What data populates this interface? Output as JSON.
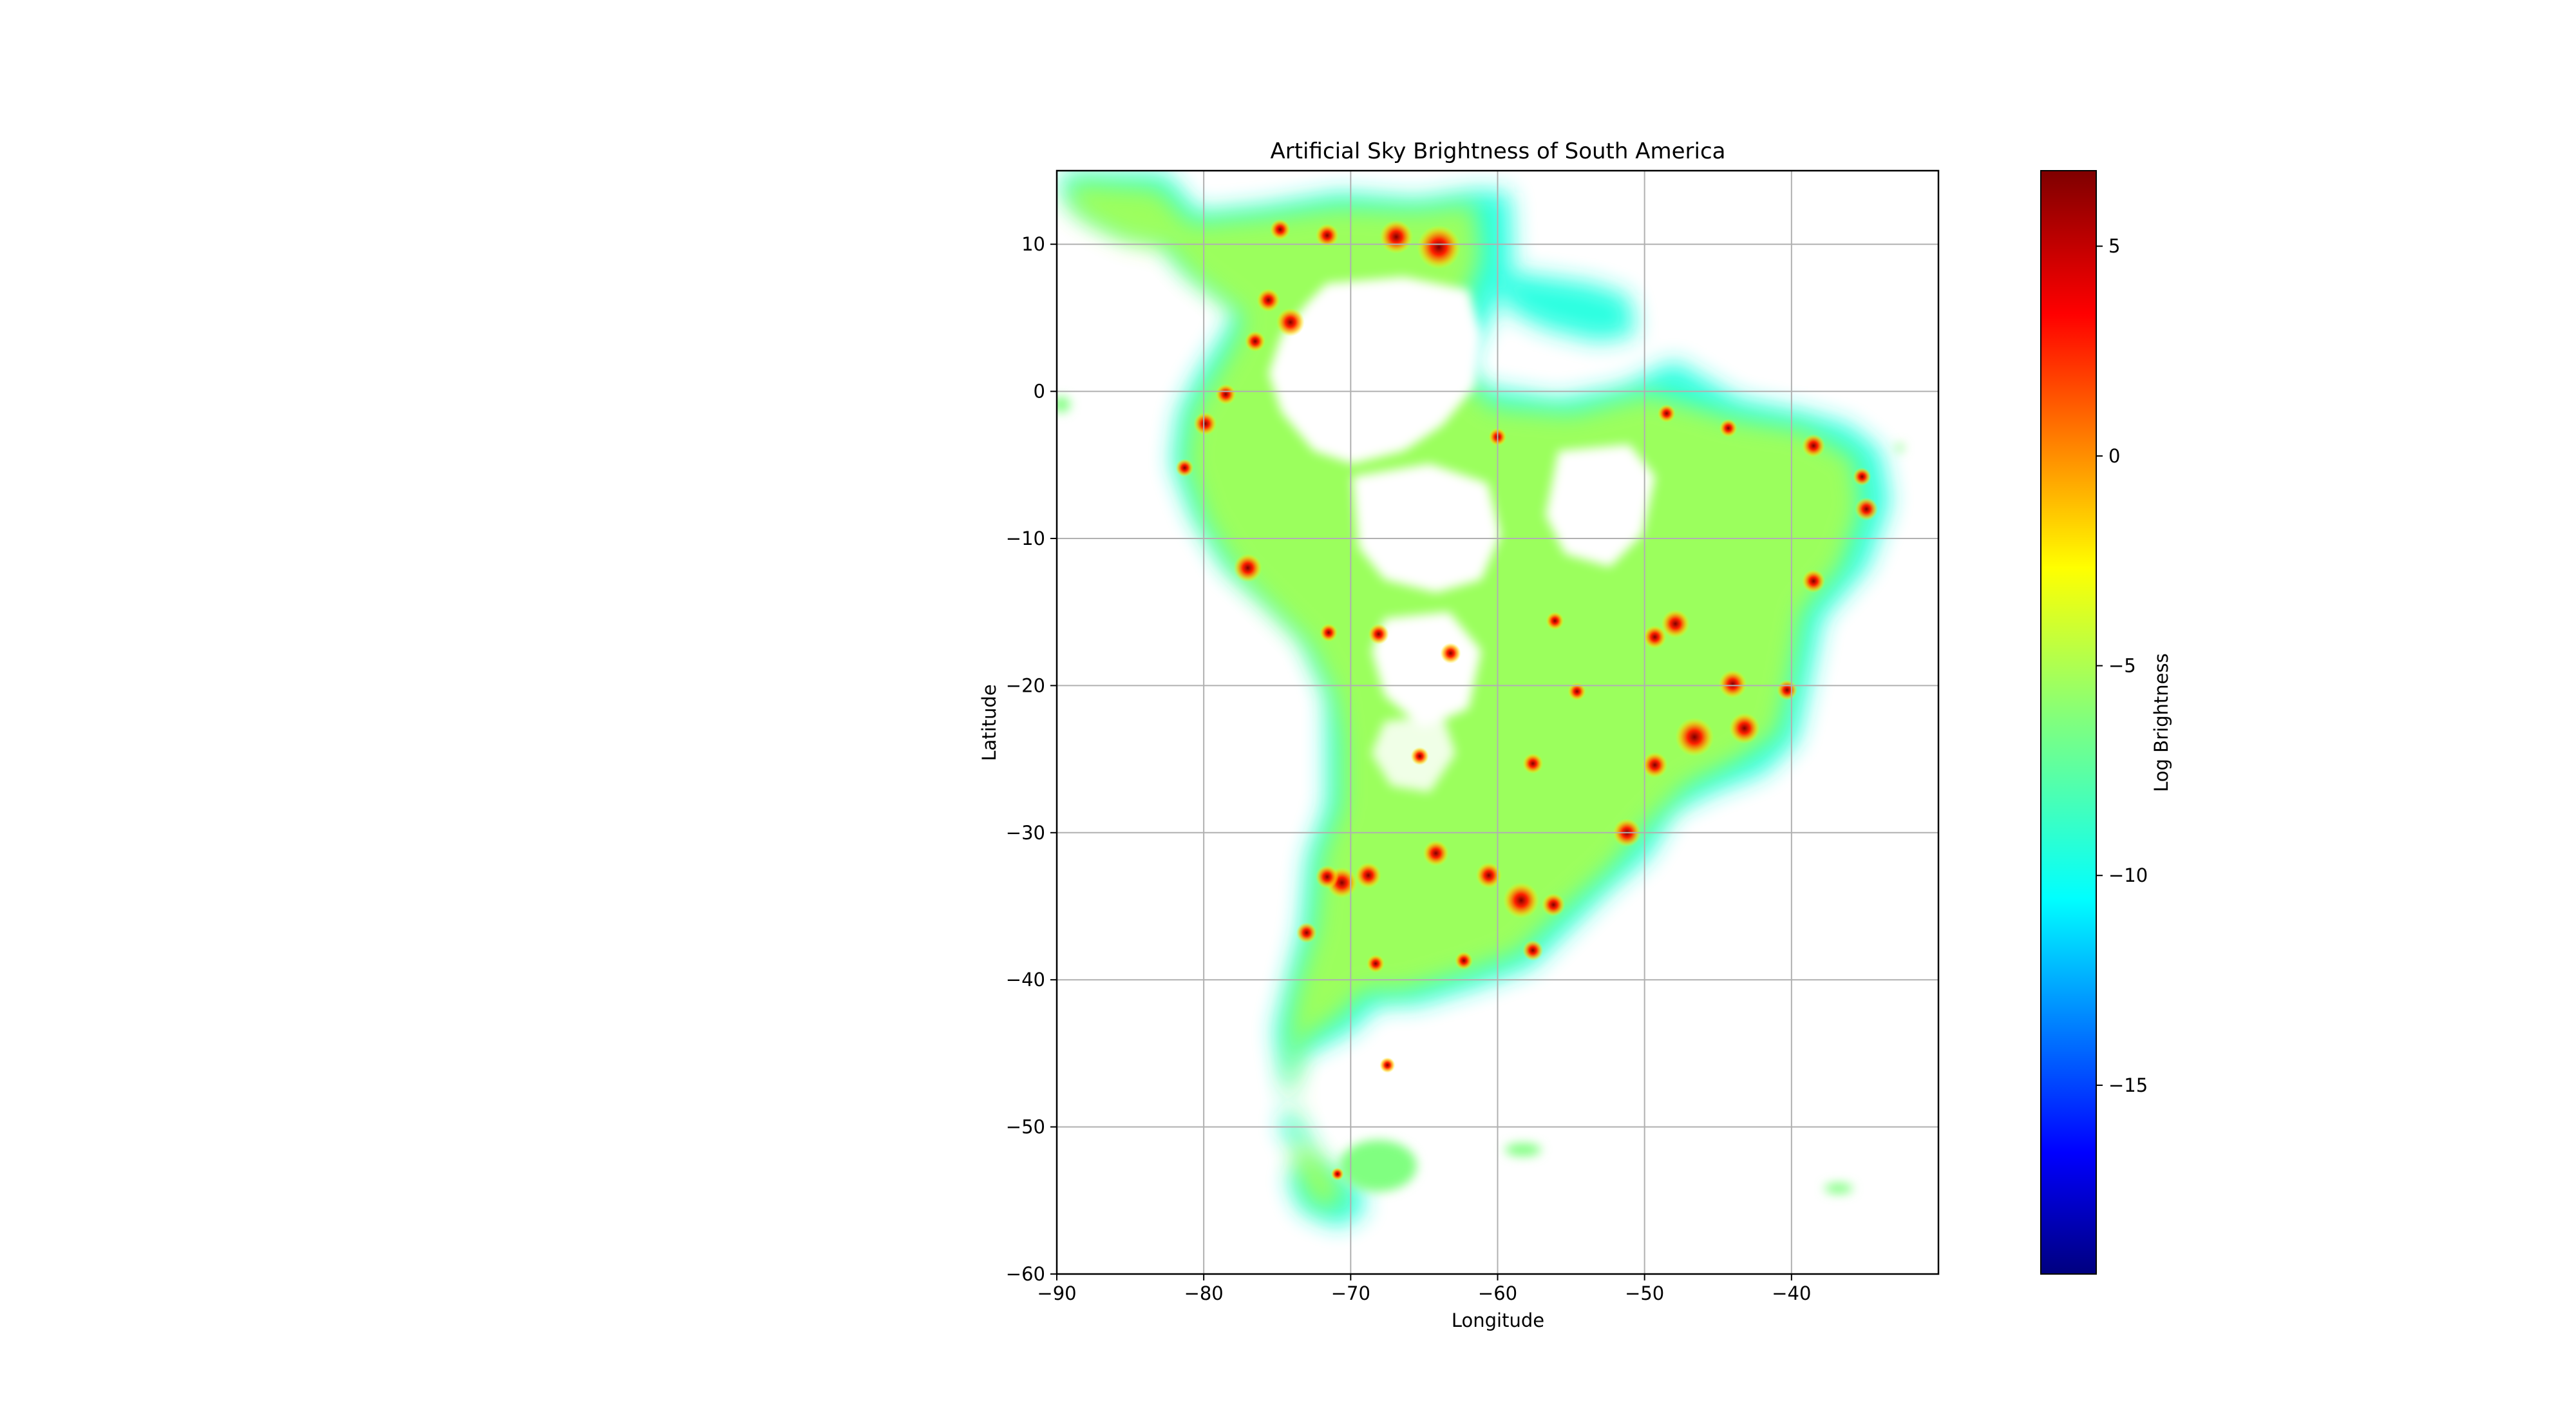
{
  "chart_data": {
    "type": "heatmap",
    "title": "Artificial Sky Brightness of South America",
    "xlabel": "Longitude",
    "ylabel": "Latitude",
    "xlim": [
      -90,
      -30
    ],
    "ylim": [
      -60,
      15
    ],
    "xticks": [
      -90,
      -80,
      -70,
      -60,
      -50,
      -40
    ],
    "xtick_labels": [
      "−90",
      "−80",
      "−70",
      "−60",
      "−50",
      "−40"
    ],
    "yticks": [
      10,
      0,
      -10,
      -20,
      -30,
      -40,
      -50,
      -60
    ],
    "ytick_labels": [
      "10",
      "0",
      "−10",
      "−20",
      "−30",
      "−40",
      "−50",
      "−60"
    ],
    "grid": true,
    "colormap": "jet",
    "colorbar": {
      "label": "Log Brightness",
      "range": [
        -19.5,
        6.8
      ],
      "ticks": [
        5,
        0,
        -5,
        -10,
        -15
      ],
      "tick_labels": [
        "5",
        "0",
        "−5",
        "−10",
        "−15"
      ]
    },
    "bright_spots": [
      {
        "lon": -46.6,
        "lat": -23.5,
        "value": 5.5
      },
      {
        "lon": -58.4,
        "lat": -34.6,
        "value": 5.0
      },
      {
        "lon": -43.2,
        "lat": -22.9,
        "value": 4.0
      },
      {
        "lon": -70.6,
        "lat": -33.4,
        "value": 4.0
      },
      {
        "lon": -66.9,
        "lat": 10.5,
        "value": 4.5
      },
      {
        "lon": -64.0,
        "lat": 9.8,
        "value": 6.5
      },
      {
        "lon": -47.9,
        "lat": -15.8,
        "value": 3.5
      },
      {
        "lon": -44.0,
        "lat": -19.9,
        "value": 3.5
      },
      {
        "lon": -74.1,
        "lat": 4.7,
        "value": 3.5
      },
      {
        "lon": -77.0,
        "lat": -12.0,
        "value": 3.5
      },
      {
        "lon": -51.2,
        "lat": -30.0,
        "value": 3.5
      },
      {
        "lon": -49.3,
        "lat": -25.4,
        "value": 3.0
      },
      {
        "lon": -38.5,
        "lat": -12.9,
        "value": 2.5
      },
      {
        "lon": -64.2,
        "lat": -31.4,
        "value": 3.0
      },
      {
        "lon": -60.6,
        "lat": -32.9,
        "value": 3.0
      },
      {
        "lon": -68.8,
        "lat": -32.9,
        "value": 3.0
      },
      {
        "lon": -57.6,
        "lat": -38.0,
        "value": 2.0
      },
      {
        "lon": -56.2,
        "lat": -34.9,
        "value": 2.5
      },
      {
        "lon": -38.5,
        "lat": -3.7,
        "value": 2.5
      },
      {
        "lon": -34.9,
        "lat": -8.0,
        "value": 2.5
      },
      {
        "lon": -78.5,
        "lat": -0.2,
        "value": 2.0
      },
      {
        "lon": -79.9,
        "lat": -2.2,
        "value": 2.5
      },
      {
        "lon": -75.6,
        "lat": 6.2,
        "value": 2.5
      },
      {
        "lon": -76.5,
        "lat": 3.4,
        "value": 2.0
      },
      {
        "lon": -65.3,
        "lat": -24.8,
        "value": 1.5
      },
      {
        "lon": -57.6,
        "lat": -25.3,
        "value": 2.0
      },
      {
        "lon": -68.1,
        "lat": -16.5,
        "value": 2.0
      },
      {
        "lon": -63.2,
        "lat": -17.8,
        "value": 2.0
      },
      {
        "lon": -71.5,
        "lat": -16.4,
        "value": 1.5
      },
      {
        "lon": -60.0,
        "lat": -3.1,
        "value": 1.5
      },
      {
        "lon": -48.5,
        "lat": -1.5,
        "value": 1.5
      },
      {
        "lon": -49.3,
        "lat": -16.7,
        "value": 2.5
      },
      {
        "lon": -71.6,
        "lat": -33.0,
        "value": 2.5
      },
      {
        "lon": -73.0,
        "lat": -36.8,
        "value": 2.0
      },
      {
        "lon": -68.3,
        "lat": -38.9,
        "value": 1.5
      },
      {
        "lon": -62.3,
        "lat": -38.7,
        "value": 1.5
      },
      {
        "lon": -71.6,
        "lat": 10.6,
        "value": 2.5
      },
      {
        "lon": -74.8,
        "lat": 11.0,
        "value": 2.0
      },
      {
        "lon": -81.3,
        "lat": -5.2,
        "value": 1.5
      },
      {
        "lon": -67.5,
        "lat": -45.8,
        "value": 1.0
      },
      {
        "lon": -70.9,
        "lat": -53.2,
        "value": 0.5
      },
      {
        "lon": -40.3,
        "lat": -20.3,
        "value": 2.0
      },
      {
        "lon": -35.2,
        "lat": -5.8,
        "value": 1.5
      },
      {
        "lon": -44.3,
        "lat": -2.5,
        "value": 1.5
      },
      {
        "lon": -56.1,
        "lat": -15.6,
        "value": 1.5
      },
      {
        "lon": -54.6,
        "lat": -20.4,
        "value": 1.5
      }
    ]
  }
}
